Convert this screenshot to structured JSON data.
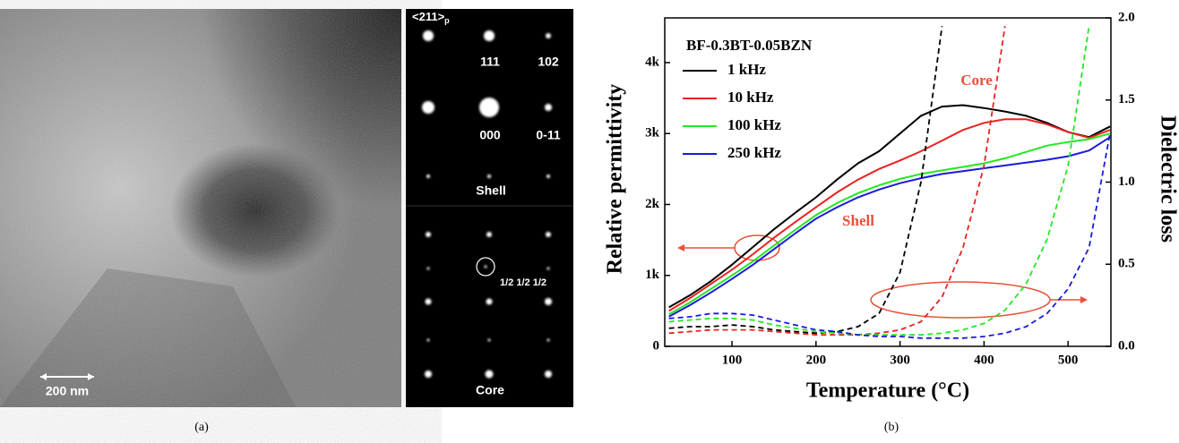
{
  "image_panel": {
    "scale_bar": "200 nm",
    "zone_axis": "<211>",
    "zone_axis_sub": "p",
    "spot_labels": [
      "111",
      "102",
      "000",
      "0-11"
    ],
    "shell_label": "Shell",
    "superlattice_label": "1/2 1/2 1/2",
    "core_label": "Core"
  },
  "captions": [
    "(a)",
    "(b)"
  ],
  "chart_data": {
    "type": "line",
    "legend_title": "BF-0.3BT-0.05BZN",
    "xlabel": "Temperature (°C)",
    "ylabel": "Relative permittivity",
    "y2label": "Dielectric loss",
    "annotations": [
      "Core",
      "Shell"
    ],
    "x": [
      25,
      50,
      75,
      100,
      125,
      150,
      175,
      200,
      225,
      250,
      275,
      300,
      325,
      350,
      375,
      400,
      425,
      450,
      475,
      500,
      525,
      550
    ],
    "xlim": [
      20,
      551
    ],
    "xticks": [
      100,
      200,
      300,
      400,
      500
    ],
    "ylim": [
      0,
      4630
    ],
    "yticks": [
      0,
      {
        "value": 1000,
        "label": "1k"
      },
      {
        "value": 2000,
        "label": "2k"
      },
      {
        "value": 3000,
        "label": "3k"
      },
      {
        "value": 4000,
        "label": "4k"
      }
    ],
    "y2lim": [
      0,
      2.0
    ],
    "y2ticks": [
      {
        "value": 0,
        "label": "0.0"
      },
      0.5,
      {
        "value": 1,
        "label": "1.0"
      },
      1.5,
      {
        "value": 2,
        "label": "2.0"
      }
    ],
    "series": [
      {
        "name": "1 kHz",
        "color": "#000000",
        "values": [
          550,
          720,
          920,
          1150,
          1400,
          1650,
          1880,
          2100,
          2350,
          2580,
          2750,
          3000,
          3250,
          3380,
          3400,
          3360,
          3310,
          3250,
          3150,
          3020,
          2950,
          3100
        ]
      },
      {
        "name": "10 kHz",
        "color": "#e8231f",
        "values": [
          500,
          680,
          880,
          1080,
          1300,
          1530,
          1750,
          1960,
          2170,
          2350,
          2500,
          2620,
          2750,
          2900,
          3050,
          3150,
          3200,
          3200,
          3130,
          3020,
          2940,
          3050
        ]
      },
      {
        "name": "100 kHz",
        "color": "#22e822",
        "values": [
          450,
          620,
          810,
          1000,
          1200,
          1420,
          1640,
          1850,
          2020,
          2160,
          2270,
          2360,
          2430,
          2480,
          2530,
          2580,
          2650,
          2740,
          2830,
          2880,
          2920,
          3000
        ]
      },
      {
        "name": "250 kHz",
        "color": "#1a1adc",
        "values": [
          420,
          580,
          760,
          950,
          1150,
          1370,
          1590,
          1800,
          1960,
          2100,
          2210,
          2300,
          2370,
          2430,
          2470,
          2510,
          2550,
          2590,
          2630,
          2680,
          2760,
          2950
        ]
      },
      {
        "color": "#000000",
        "axis": "y2",
        "dashed": true,
        "values": [
          0.11,
          0.12,
          0.12,
          0.13,
          0.12,
          0.1,
          0.09,
          0.08,
          0.09,
          0.12,
          0.2,
          0.45,
          1.0,
          1.95,
          null,
          null,
          null,
          null,
          null,
          null,
          null,
          null
        ]
      },
      {
        "color": "#e8231f",
        "axis": "y2",
        "dashed": true,
        "values": [
          0.08,
          0.09,
          0.1,
          0.1,
          0.1,
          0.09,
          0.08,
          0.07,
          0.07,
          0.07,
          0.08,
          0.1,
          0.15,
          0.3,
          0.6,
          1.1,
          1.95,
          null,
          null,
          null,
          null,
          null
        ]
      },
      {
        "color": "#22e822",
        "axis": "y2",
        "dashed": true,
        "values": [
          0.15,
          0.16,
          0.17,
          0.17,
          0.16,
          0.13,
          0.11,
          0.09,
          0.08,
          0.07,
          0.07,
          0.07,
          0.07,
          0.08,
          0.1,
          0.14,
          0.22,
          0.38,
          0.65,
          1.1,
          1.95,
          null
        ]
      },
      {
        "color": "#1a1adc",
        "axis": "y2",
        "dashed": true,
        "values": [
          0.17,
          0.18,
          0.2,
          0.2,
          0.19,
          0.16,
          0.13,
          0.1,
          0.09,
          0.07,
          0.06,
          0.06,
          0.05,
          0.05,
          0.05,
          0.06,
          0.08,
          0.12,
          0.2,
          0.35,
          0.6,
          1.3
        ]
      }
    ]
  }
}
